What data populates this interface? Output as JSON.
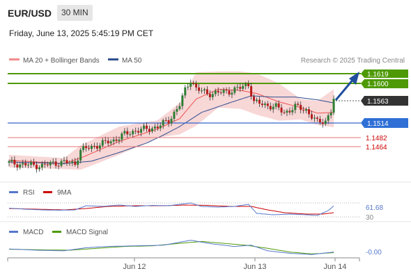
{
  "header": {
    "symbol": "EUR/USD",
    "timeframe": "30 MIN",
    "datetime": "Friday, June 13, 2025 5:45:19 PM CET"
  },
  "legend": {
    "ma20": "MA 20 + Bollinger Bands",
    "ma50": "MA 50",
    "copyright": "Research © 2025 Trading Central"
  },
  "colors": {
    "up": "#2e7d32",
    "down": "#b71c1c",
    "ma20": "#ef5350",
    "band": "#f8c8c8",
    "ma50": "#2f4f8f",
    "resistance": "#4e9a06",
    "support": "#3366cc",
    "pivot": "#cc0000",
    "last": "#333333",
    "arrow": "#1f4e9c",
    "rsi": "#5577cc",
    "rsi_ma": "#cc0000",
    "macd": "#5577cc",
    "macd_signal": "#4e9a06"
  },
  "levels": {
    "r2": "1.1619",
    "r1": "1.1600",
    "last": "1.1563",
    "pivot": "1.1514",
    "s1": "1.1482",
    "s2": "1.1464"
  },
  "rsi_panel": {
    "label": "RSI",
    "ma_label": "9MA",
    "value": "61.68",
    "lower_level": "30"
  },
  "macd_panel": {
    "label": "MACD",
    "signal_label": "MACD Signal",
    "value": "-0.00"
  },
  "x_axis": [
    "Jun 12",
    "Jun 13",
    "Jun 14"
  ],
  "chart_data": {
    "type": "candlestick",
    "ylim": [
      1.137,
      1.1635
    ],
    "anchors": [
      [
        0,
        1.1398
      ],
      [
        4,
        1.1394
      ],
      [
        8,
        1.1392
      ],
      [
        12,
        1.139
      ],
      [
        16,
        1.1397
      ],
      [
        20,
        1.1399
      ],
      [
        24,
        1.1396
      ],
      [
        26,
        1.143
      ],
      [
        30,
        1.1438
      ],
      [
        34,
        1.1447
      ],
      [
        38,
        1.1455
      ],
      [
        42,
        1.147
      ],
      [
        46,
        1.148
      ],
      [
        50,
        1.1483
      ],
      [
        54,
        1.149
      ],
      [
        58,
        1.1505
      ],
      [
        62,
        1.1545
      ],
      [
        64,
        1.1582
      ],
      [
        66,
        1.161
      ],
      [
        68,
        1.1586
      ],
      [
        72,
        1.1574
      ],
      [
        76,
        1.1576
      ],
      [
        80,
        1.158
      ],
      [
        84,
        1.1588
      ],
      [
        87,
        1.1598
      ],
      [
        89,
        1.1552
      ],
      [
        93,
        1.1545
      ],
      [
        97,
        1.154
      ],
      [
        100,
        1.1525
      ],
      [
        104,
        1.154
      ],
      [
        108,
        1.1532
      ],
      [
        112,
        1.15
      ],
      [
        115,
        1.1505
      ],
      [
        117,
        1.153
      ],
      [
        118,
        1.156
      ]
    ],
    "ma20": [
      [
        0,
        1.1404
      ],
      [
        20,
        1.1396
      ],
      [
        26,
        1.141
      ],
      [
        40,
        1.1452
      ],
      [
        54,
        1.1484
      ],
      [
        62,
        1.151
      ],
      [
        68,
        1.156
      ],
      [
        76,
        1.1585
      ],
      [
        84,
        1.1582
      ],
      [
        90,
        1.1574
      ],
      [
        98,
        1.1553
      ],
      [
        106,
        1.1538
      ],
      [
        112,
        1.1524
      ],
      [
        118,
        1.1526
      ]
    ],
    "band_upper": [
      [
        0,
        1.1418
      ],
      [
        20,
        1.141
      ],
      [
        26,
        1.1442
      ],
      [
        40,
        1.149
      ],
      [
        54,
        1.1506
      ],
      [
        62,
        1.155
      ],
      [
        68,
        1.1628
      ],
      [
        76,
        1.163
      ],
      [
        84,
        1.163
      ],
      [
        90,
        1.1625
      ],
      [
        98,
        1.16
      ],
      [
        106,
        1.156
      ],
      [
        112,
        1.1555
      ],
      [
        118,
        1.1585
      ]
    ],
    "band_lower": [
      [
        0,
        1.1386
      ],
      [
        20,
        1.1382
      ],
      [
        26,
        1.138
      ],
      [
        40,
        1.1418
      ],
      [
        54,
        1.1462
      ],
      [
        62,
        1.147
      ],
      [
        68,
        1.1492
      ],
      [
        76,
        1.1538
      ],
      [
        84,
        1.1535
      ],
      [
        90,
        1.152
      ],
      [
        98,
        1.1505
      ],
      [
        106,
        1.1508
      ],
      [
        112,
        1.1494
      ],
      [
        118,
        1.1488
      ]
    ],
    "ma50": [
      [
        0,
        1.14
      ],
      [
        20,
        1.1396
      ],
      [
        30,
        1.1402
      ],
      [
        40,
        1.1424
      ],
      [
        50,
        1.1448
      ],
      [
        56,
        1.1468
      ],
      [
        62,
        1.149
      ],
      [
        70,
        1.1526
      ],
      [
        80,
        1.155
      ],
      [
        88,
        1.1568
      ],
      [
        96,
        1.1565
      ],
      [
        104,
        1.1565
      ],
      [
        112,
        1.1558
      ],
      [
        118,
        1.155
      ]
    ],
    "rsi": [
      [
        0,
        55
      ],
      [
        6,
        52
      ],
      [
        12,
        50
      ],
      [
        18,
        49
      ],
      [
        24,
        50
      ],
      [
        28,
        62
      ],
      [
        34,
        60
      ],
      [
        40,
        64
      ],
      [
        46,
        60
      ],
      [
        52,
        63
      ],
      [
        58,
        62
      ],
      [
        62,
        66
      ],
      [
        66,
        70
      ],
      [
        70,
        60
      ],
      [
        76,
        58
      ],
      [
        82,
        60
      ],
      [
        87,
        66
      ],
      [
        90,
        40
      ],
      [
        96,
        36
      ],
      [
        102,
        38
      ],
      [
        108,
        36
      ],
      [
        112,
        34
      ],
      [
        116,
        48
      ],
      [
        118,
        61.68
      ]
    ],
    "rsi_ma": [
      [
        0,
        54
      ],
      [
        10,
        52
      ],
      [
        20,
        50
      ],
      [
        28,
        54
      ],
      [
        36,
        60
      ],
      [
        46,
        62
      ],
      [
        56,
        62
      ],
      [
        64,
        64
      ],
      [
        72,
        63
      ],
      [
        80,
        60
      ],
      [
        88,
        60
      ],
      [
        94,
        50
      ],
      [
        100,
        42
      ],
      [
        108,
        38
      ],
      [
        114,
        38
      ],
      [
        118,
        42
      ]
    ],
    "macd": [
      [
        0,
        0.0002
      ],
      [
        10,
        -0.0002
      ],
      [
        20,
        -0.0004
      ],
      [
        28,
        0.0006
      ],
      [
        36,
        0.001
      ],
      [
        46,
        0.0012
      ],
      [
        56,
        0.0014
      ],
      [
        66,
        0.003
      ],
      [
        74,
        0.0018
      ],
      [
        82,
        0.001
      ],
      [
        88,
        0.0014
      ],
      [
        94,
        -0.0004
      ],
      [
        102,
        -0.0012
      ],
      [
        110,
        -0.0016
      ],
      [
        118,
        -0.0008
      ]
    ],
    "macd_signal": [
      [
        0,
        0.0001
      ],
      [
        12,
        -0.0001
      ],
      [
        22,
        -0.0002
      ],
      [
        32,
        0.0004
      ],
      [
        42,
        0.001
      ],
      [
        52,
        0.0012
      ],
      [
        62,
        0.002
      ],
      [
        70,
        0.0026
      ],
      [
        78,
        0.002
      ],
      [
        86,
        0.0014
      ],
      [
        94,
        0.0004
      ],
      [
        102,
        -0.0008
      ],
      [
        110,
        -0.0014
      ],
      [
        118,
        -0.001
      ]
    ],
    "macd_range": [
      -0.002,
      0.0036
    ]
  }
}
